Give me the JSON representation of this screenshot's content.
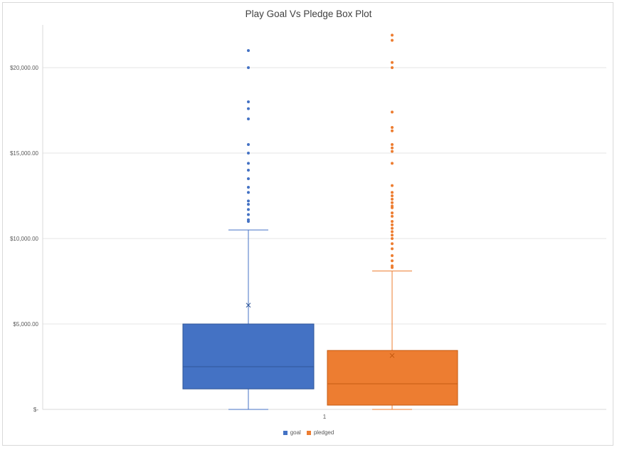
{
  "chart_data": {
    "type": "box",
    "title": "Play Goal Vs Pledge Box Plot",
    "xlabel": "",
    "ylabel": "",
    "x_tick_labels": [
      "1"
    ],
    "ylim": [
      0,
      22500
    ],
    "y_ticks": [
      0,
      5000,
      10000,
      15000,
      20000
    ],
    "y_tick_labels": [
      "$-",
      "$5,000.00",
      "$10,000.00",
      "$15,000.00",
      "$20,000.00"
    ],
    "grid": true,
    "legend_position": "bottom",
    "series": [
      {
        "name": "goal",
        "color": "#4472C4",
        "min": 0,
        "q1": 1200,
        "median": 2500,
        "q3": 5000,
        "whisker_high": 10500,
        "mean": 6100,
        "outliers": [
          11000,
          11100,
          11400,
          11700,
          12000,
          12200,
          12700,
          13000,
          13500,
          14000,
          14400,
          15000,
          15500,
          17000,
          17600,
          18000,
          20000,
          21000
        ]
      },
      {
        "name": "pledged",
        "color": "#ED7D31",
        "min": 0,
        "q1": 250,
        "median": 1500,
        "q3": 3450,
        "whisker_high": 8100,
        "mean": 3150,
        "outliers": [
          8300,
          8400,
          8700,
          9000,
          9400,
          9700,
          10000,
          10200,
          10400,
          10600,
          10800,
          11000,
          11300,
          11500,
          11800,
          11900,
          12100,
          12300,
          12500,
          12700,
          13100,
          14400,
          15100,
          15300,
          15500,
          16300,
          16500,
          17400,
          20000,
          20300,
          21600,
          21900
        ]
      }
    ]
  }
}
